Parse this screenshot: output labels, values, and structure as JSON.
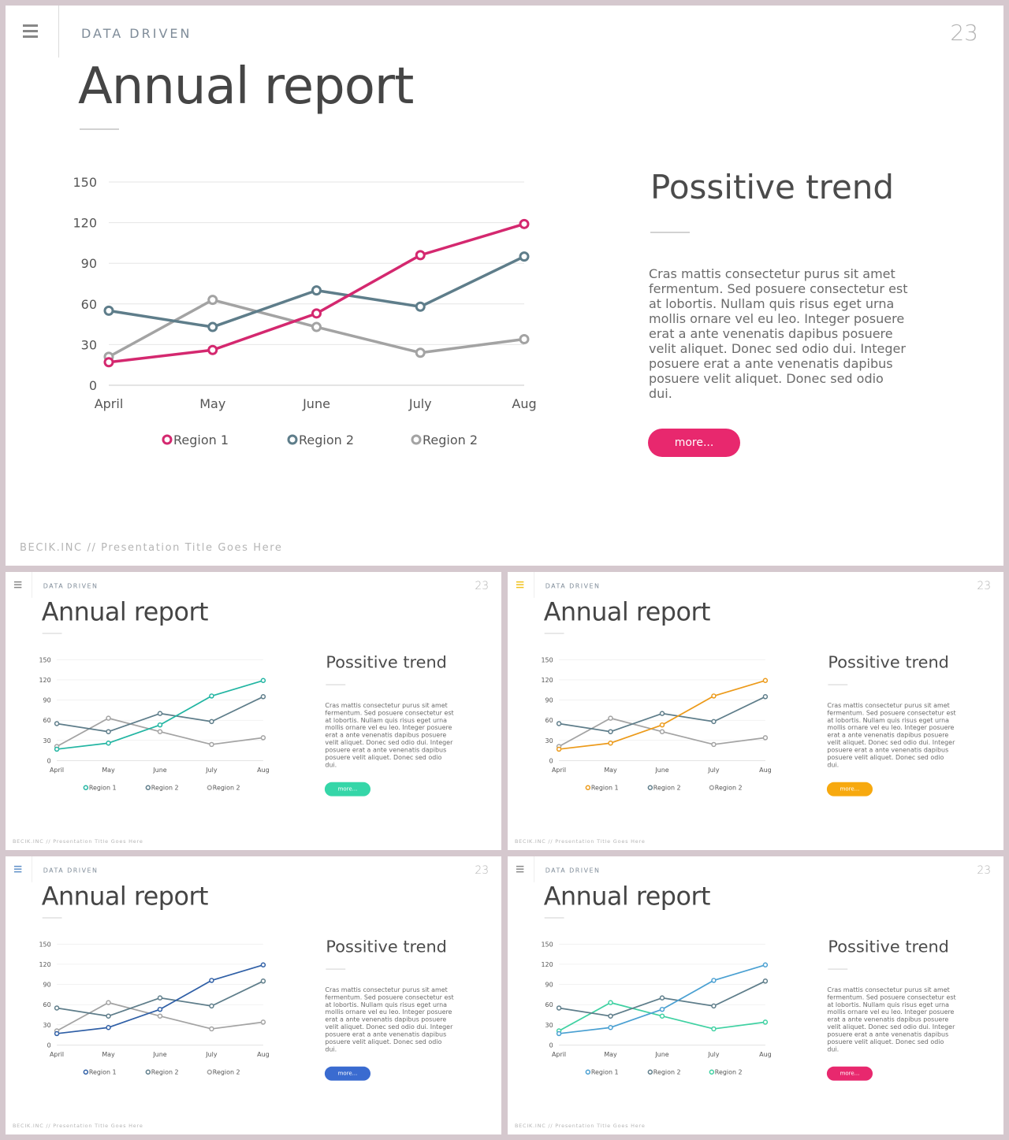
{
  "slide": {
    "section_label": "DATA DRIVEN",
    "page_number": "23",
    "title": "Annual report",
    "side_title": "Possitive trend",
    "body_text": "Cras mattis consectetur purus sit amet fermentum. Sed posuere consectetur est at lobortis. Nullam quis risus eget urna mollis ornare vel eu leo. Integer posuere erat a ante venenatis dapibus posuere velit aliquet. Donec sed odio dui. Integer posuere erat a ante venenatis dapibus posuere velit aliquet. Donec sed odio dui.",
    "more_label": "more...",
    "footer": "BECIK.INC  //  Presentation  Title  Goes  Here"
  },
  "chart_data": {
    "type": "line",
    "categories": [
      "April",
      "May",
      "June",
      "July",
      "Aug"
    ],
    "ylim": [
      0,
      150
    ],
    "yticks": [
      0,
      30,
      60,
      90,
      120,
      150
    ],
    "series": [
      {
        "name": "Region 1",
        "values": [
          17,
          26,
          53,
          96,
          119
        ]
      },
      {
        "name": "Region 2",
        "values": [
          55,
          43,
          70,
          58,
          95
        ]
      },
      {
        "name": "Region 2",
        "values": [
          21,
          63,
          43,
          24,
          34
        ]
      }
    ]
  },
  "variants": [
    {
      "id": "main",
      "accent": "#d4286f",
      "menu_color": "#888888",
      "series_colors": [
        "#d4286f",
        "#5e7d8a",
        "#a3a3a3"
      ],
      "button_color": "#e8286e"
    },
    {
      "id": "teal",
      "accent": "#22b5a2",
      "menu_color": "#888888",
      "series_colors": [
        "#22b5a2",
        "#5e7d8a",
        "#a3a3a3"
      ],
      "button_color": "#35d6a8"
    },
    {
      "id": "orange",
      "accent": "#ec9a1a",
      "menu_color": "#f1c21b",
      "series_colors": [
        "#ec9a1a",
        "#5e7d8a",
        "#a3a3a3"
      ],
      "button_color": "#f7a90f"
    },
    {
      "id": "blue",
      "accent": "#2f5fa6",
      "menu_color": "#5e8fc7",
      "series_colors": [
        "#2f5fa6",
        "#5e7d8a",
        "#a3a3a3"
      ],
      "button_color": "#3a6bd0"
    },
    {
      "id": "sky-mint",
      "accent": "#4aa0d2",
      "menu_color": "#888888",
      "series_colors": [
        "#4aa0d2",
        "#5e7d8a",
        "#3fd1a2"
      ],
      "button_color": "#e8286e"
    }
  ]
}
